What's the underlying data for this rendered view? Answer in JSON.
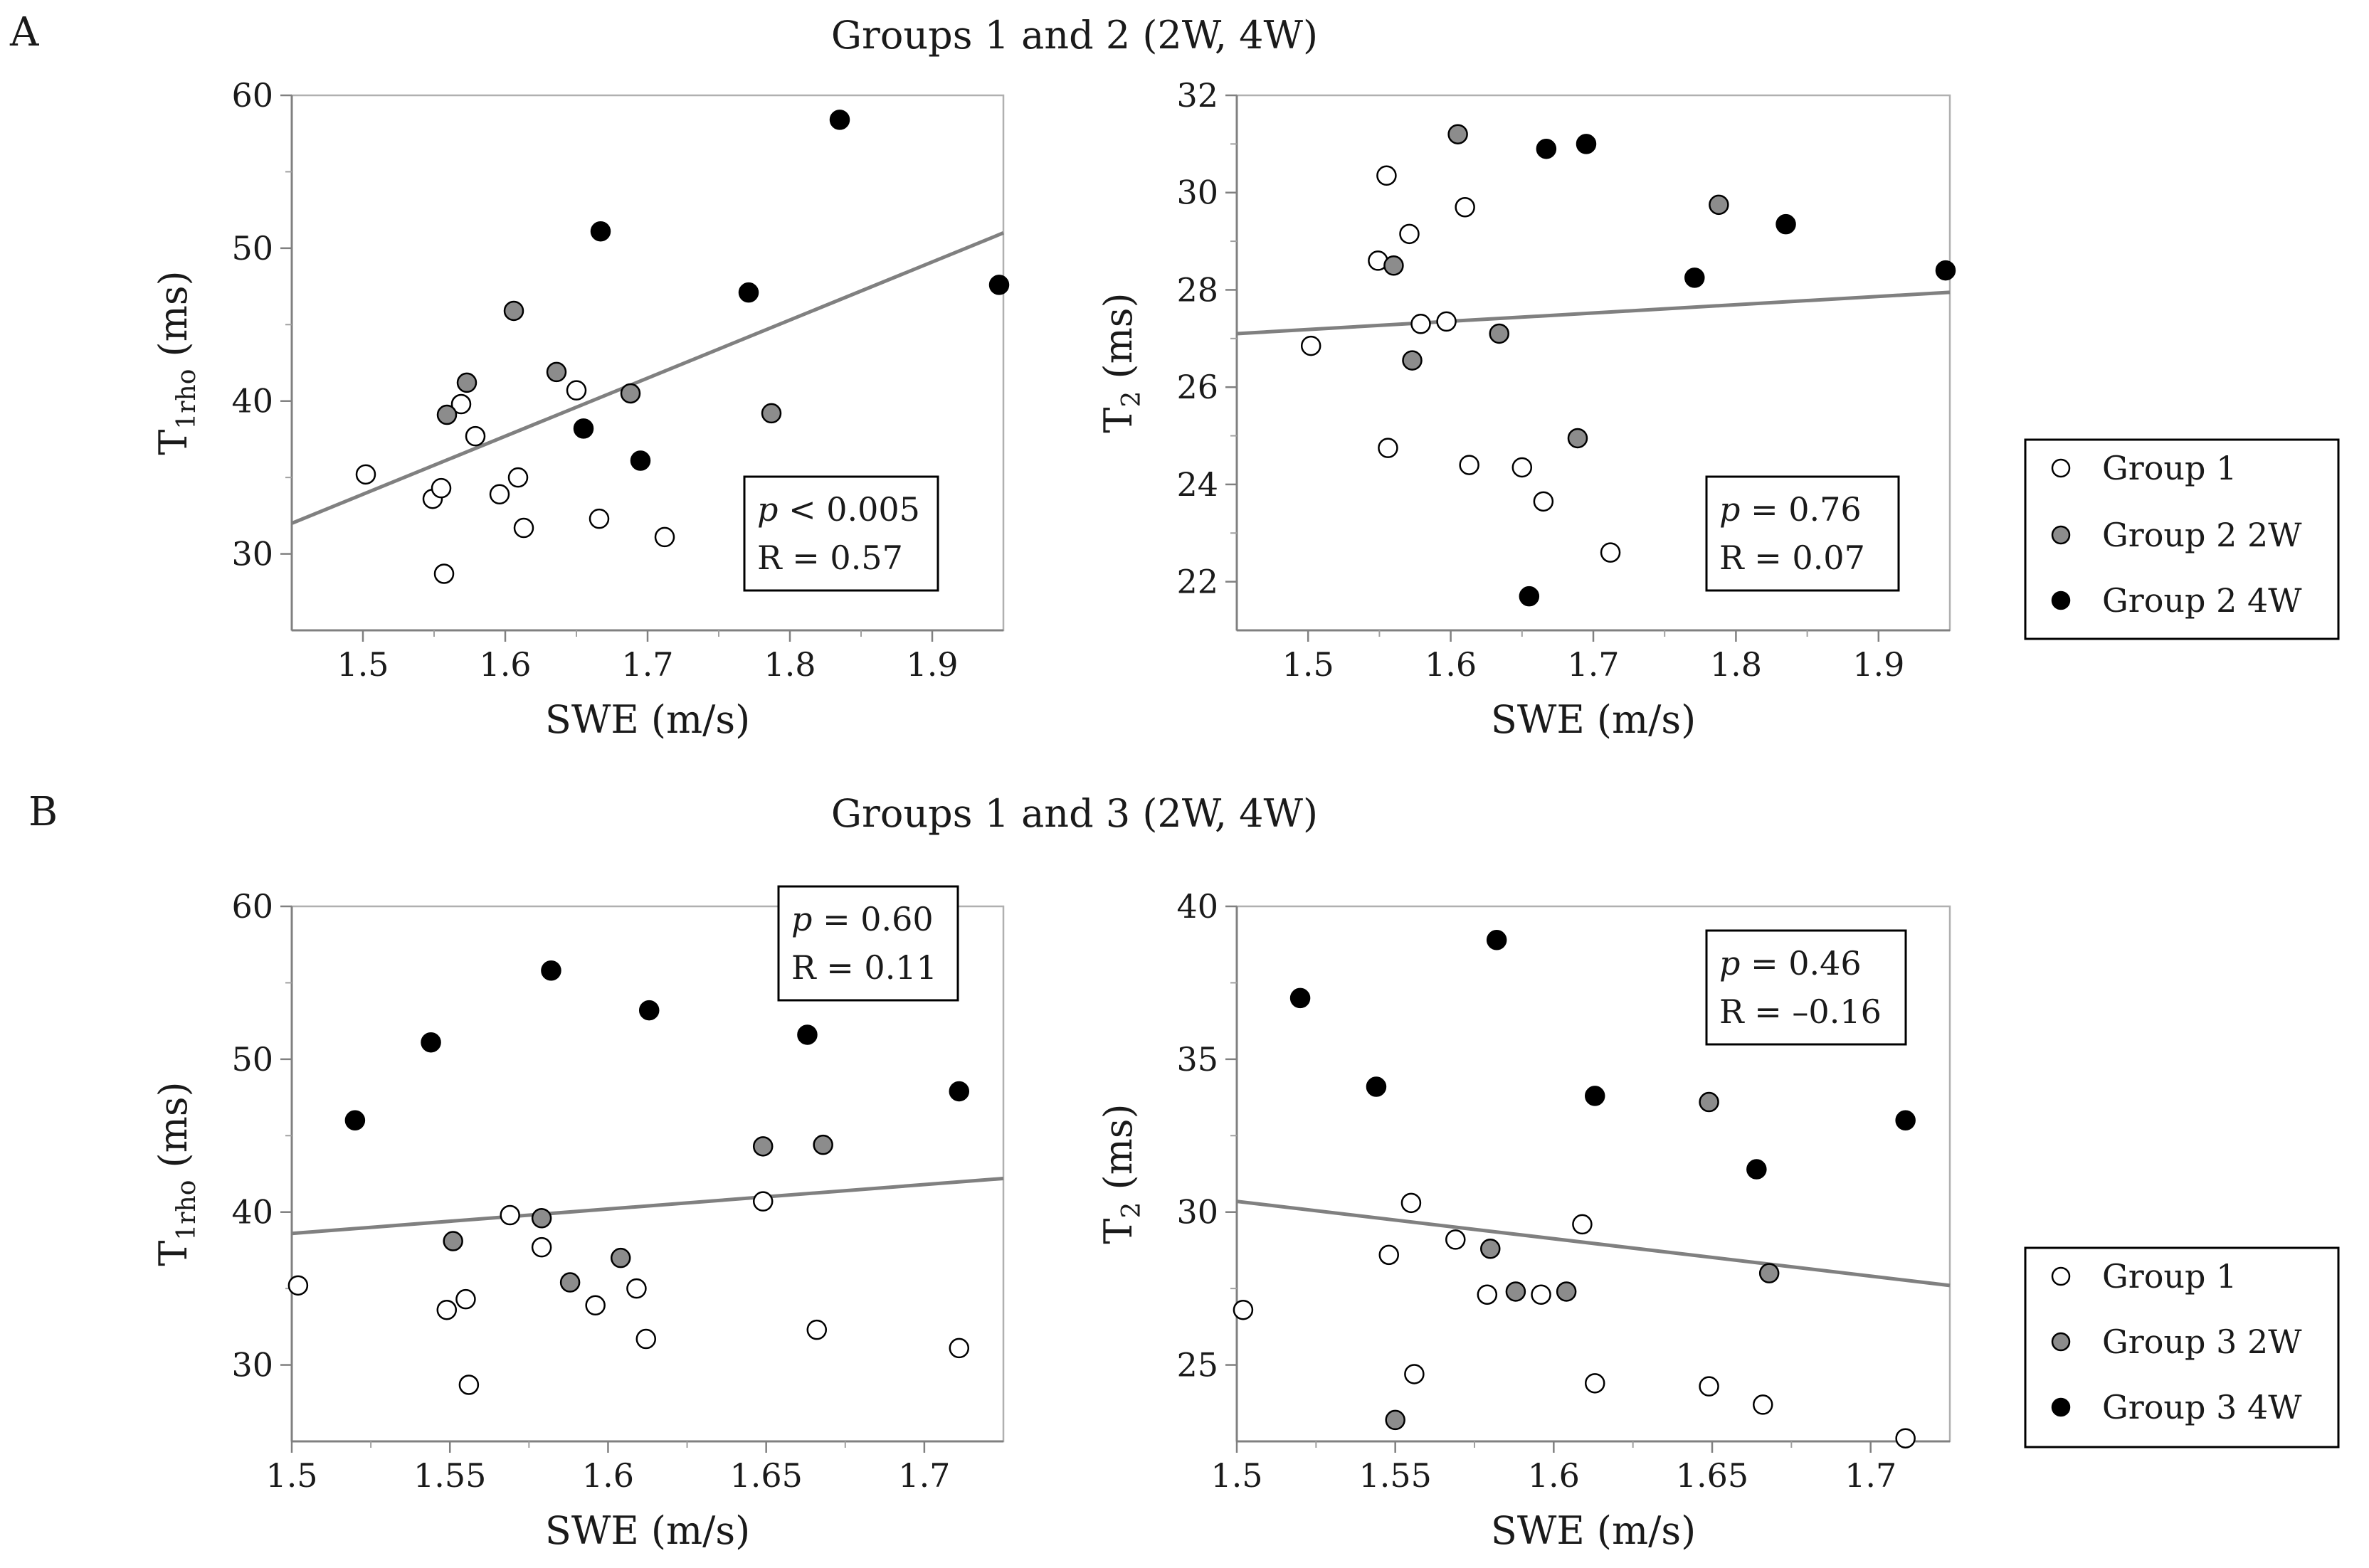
{
  "sections": [
    {
      "letter": "A",
      "title": "Groups 1 and 2 (2W, 4W)"
    },
    {
      "letter": "B",
      "title": "Groups 1 and 3 (2W, 4W)"
    }
  ],
  "colors": {
    "g1": "#ffffff",
    "g2": "#8c8c8c",
    "g3": "#000000",
    "marker_edge": "#000000",
    "fit_line": "#808080"
  },
  "legends": [
    {
      "items": [
        {
          "label": "Group 1",
          "color": "#ffffff"
        },
        {
          "label": "Group 2 2W",
          "color": "#8c8c8c"
        },
        {
          "label": "Group 2 4W",
          "color": "#000000"
        }
      ]
    },
    {
      "items": [
        {
          "label": "Group 1",
          "color": "#ffffff"
        },
        {
          "label": "Group 3 2W",
          "color": "#8c8c8c"
        },
        {
          "label": "Group 3 4W",
          "color": "#000000"
        }
      ]
    }
  ],
  "chart_data": [
    {
      "type": "scatter",
      "section": "A",
      "title": "",
      "xlabel": "SWE (m/s)",
      "ylabel": "T1rho (ms)",
      "ylabel_main": "T",
      "ylabel_sub": "1rho",
      "ylabel_rest": " (ms)",
      "xlim": [
        1.45,
        1.95
      ],
      "ylim": [
        25,
        60
      ],
      "xticks": [
        1.5,
        1.6,
        1.7,
        1.8,
        1.9
      ],
      "xtick_labels": [
        "1.5",
        "1.6",
        "1.7",
        "1.8",
        "1.9"
      ],
      "yticks": [
        30,
        40,
        50,
        60
      ],
      "ytick_labels": [
        "30",
        "40",
        "50",
        "60"
      ],
      "stats": {
        "p_symbol": "p",
        "p_text": " < 0.005",
        "r_text": "R = 0.57",
        "position": "lower-right"
      },
      "fit_line": {
        "x": [
          1.45,
          1.95
        ],
        "y": [
          32.0,
          51.0
        ]
      },
      "series": [
        {
          "name": "Group 1",
          "color": "#ffffff",
          "points": [
            [
              1.502,
              35.2
            ],
            [
              1.549,
              33.6
            ],
            [
              1.555,
              34.3
            ],
            [
              1.557,
              28.7
            ],
            [
              1.569,
              39.8
            ],
            [
              1.579,
              37.7
            ],
            [
              1.596,
              33.9
            ],
            [
              1.609,
              35.0
            ],
            [
              1.613,
              31.7
            ],
            [
              1.65,
              40.7
            ],
            [
              1.666,
              32.3
            ],
            [
              1.712,
              31.1
            ]
          ]
        },
        {
          "name": "Group 2 2W",
          "color": "#8c8c8c",
          "points": [
            [
              1.559,
              39.1
            ],
            [
              1.573,
              41.2
            ],
            [
              1.606,
              45.9
            ],
            [
              1.636,
              41.9
            ],
            [
              1.688,
              40.5
            ],
            [
              1.787,
              39.2
            ]
          ]
        },
        {
          "name": "Group 2 4W",
          "color": "#000000",
          "points": [
            [
              1.655,
              38.2
            ],
            [
              1.667,
              51.1
            ],
            [
              1.695,
              36.1
            ],
            [
              1.771,
              47.1
            ],
            [
              1.835,
              58.4
            ],
            [
              1.947,
              47.6
            ]
          ]
        }
      ]
    },
    {
      "type": "scatter",
      "section": "A",
      "title": "",
      "xlabel": "SWE (m/s)",
      "ylabel": "T2 (ms)",
      "ylabel_main": "T",
      "ylabel_sub": "2",
      "ylabel_rest": " (ms)",
      "xlim": [
        1.45,
        1.95
      ],
      "ylim": [
        21,
        32
      ],
      "xticks": [
        1.5,
        1.6,
        1.7,
        1.8,
        1.9
      ],
      "xtick_labels": [
        "1.5",
        "1.6",
        "1.7",
        "1.8",
        "1.9"
      ],
      "yticks": [
        22,
        24,
        26,
        28,
        30,
        32
      ],
      "ytick_labels": [
        "22",
        "24",
        "26",
        "28",
        "30",
        "32"
      ],
      "stats": {
        "p_symbol": "p",
        "p_text": " = 0.76",
        "r_text": "R = 0.07",
        "position": "lower-right"
      },
      "fit_line": {
        "x": [
          1.45,
          1.95
        ],
        "y": [
          27.1,
          27.95
        ]
      },
      "series": [
        {
          "name": "Group 1",
          "color": "#ffffff",
          "points": [
            [
              1.502,
              26.85
            ],
            [
              1.549,
              28.6
            ],
            [
              1.555,
              30.35
            ],
            [
              1.556,
              24.75
            ],
            [
              1.571,
              29.15
            ],
            [
              1.579,
              27.3
            ],
            [
              1.597,
              27.35
            ],
            [
              1.61,
              29.7
            ],
            [
              1.613,
              24.4
            ],
            [
              1.65,
              24.35
            ],
            [
              1.665,
              23.65
            ],
            [
              1.712,
              22.6
            ]
          ]
        },
        {
          "name": "Group 2 2W",
          "color": "#8c8c8c",
          "points": [
            [
              1.56,
              28.5
            ],
            [
              1.573,
              26.55
            ],
            [
              1.605,
              31.2
            ],
            [
              1.634,
              27.1
            ],
            [
              1.689,
              24.95
            ],
            [
              1.788,
              29.75
            ]
          ]
        },
        {
          "name": "Group 2 4W",
          "color": "#000000",
          "points": [
            [
              1.655,
              21.7
            ],
            [
              1.667,
              30.9
            ],
            [
              1.695,
              31.0
            ],
            [
              1.771,
              28.25
            ],
            [
              1.835,
              29.35
            ],
            [
              1.947,
              28.4
            ]
          ]
        }
      ]
    },
    {
      "type": "scatter",
      "section": "B",
      "title": "",
      "xlabel": "SWE (m/s)",
      "ylabel": "T1rho (ms)",
      "ylabel_main": "T",
      "ylabel_sub": "1rho",
      "ylabel_rest": " (ms)",
      "xlim": [
        1.5,
        1.725
      ],
      "ylim": [
        25,
        60
      ],
      "xticks": [
        1.5,
        1.55,
        1.6,
        1.65,
        1.7
      ],
      "xtick_labels": [
        "1.5",
        "1.55",
        "1.6",
        "1.65",
        "1.7"
      ],
      "yticks": [
        30,
        40,
        50,
        60
      ],
      "ytick_labels": [
        "30",
        "40",
        "50",
        "60"
      ],
      "stats": {
        "p_symbol": "p",
        "p_text": " = 0.60",
        "r_text": "R = 0.11",
        "position": "top-right"
      },
      "fit_line": {
        "x": [
          1.5,
          1.725
        ],
        "y": [
          38.6,
          42.2
        ]
      },
      "series": [
        {
          "name": "Group 1",
          "color": "#ffffff",
          "points": [
            [
              1.502,
              35.2
            ],
            [
              1.549,
              33.6
            ],
            [
              1.555,
              34.3
            ],
            [
              1.556,
              28.7
            ],
            [
              1.569,
              39.8
            ],
            [
              1.579,
              37.7
            ],
            [
              1.596,
              33.9
            ],
            [
              1.609,
              35.0
            ],
            [
              1.612,
              31.7
            ],
            [
              1.649,
              40.7
            ],
            [
              1.666,
              32.3
            ],
            [
              1.711,
              31.1
            ]
          ]
        },
        {
          "name": "Group 3 2W",
          "color": "#8c8c8c",
          "points": [
            [
              1.551,
              38.1
            ],
            [
              1.579,
              39.6
            ],
            [
              1.588,
              35.4
            ],
            [
              1.604,
              37.0
            ],
            [
              1.649,
              44.3
            ],
            [
              1.668,
              44.4
            ]
          ]
        },
        {
          "name": "Group 3 4W",
          "color": "#000000",
          "points": [
            [
              1.52,
              46.0
            ],
            [
              1.544,
              51.1
            ],
            [
              1.582,
              55.8
            ],
            [
              1.613,
              53.2
            ],
            [
              1.663,
              51.6
            ],
            [
              1.711,
              47.9
            ]
          ]
        }
      ]
    },
    {
      "type": "scatter",
      "section": "B",
      "title": "",
      "xlabel": "SWE (m/s)",
      "ylabel": "T2 (ms)",
      "ylabel_main": "T",
      "ylabel_sub": "2",
      "ylabel_rest": " (ms)",
      "xlim": [
        1.5,
        1.725
      ],
      "ylim": [
        22.5,
        40
      ],
      "xticks": [
        1.5,
        1.55,
        1.6,
        1.65,
        1.7
      ],
      "xtick_labels": [
        "1.5",
        "1.55",
        "1.6",
        "1.65",
        "1.7"
      ],
      "yticks": [
        25,
        30,
        35,
        40
      ],
      "ytick_labels": [
        "25",
        "30",
        "35",
        "40"
      ],
      "stats": {
        "p_symbol": "p",
        "p_text": " = 0.46",
        "r_text": "R = –0.16",
        "position": "top-right"
      },
      "fit_line": {
        "x": [
          1.5,
          1.725
        ],
        "y": [
          30.35,
          27.6
        ]
      },
      "series": [
        {
          "name": "Group 1",
          "color": "#ffffff",
          "points": [
            [
              1.502,
              26.8
            ],
            [
              1.548,
              28.6
            ],
            [
              1.555,
              30.3
            ],
            [
              1.556,
              24.7
            ],
            [
              1.569,
              29.1
            ],
            [
              1.579,
              27.3
            ],
            [
              1.596,
              27.3
            ],
            [
              1.609,
              29.6
            ],
            [
              1.613,
              24.4
            ],
            [
              1.649,
              24.3
            ],
            [
              1.666,
              23.7
            ],
            [
              1.711,
              22.6
            ]
          ]
        },
        {
          "name": "Group 3 2W",
          "color": "#8c8c8c",
          "points": [
            [
              1.55,
              23.2
            ],
            [
              1.58,
              28.8
            ],
            [
              1.588,
              27.4
            ],
            [
              1.604,
              27.4
            ],
            [
              1.649,
              33.6
            ],
            [
              1.668,
              28.0
            ]
          ]
        },
        {
          "name": "Group 3 4W",
          "color": "#000000",
          "points": [
            [
              1.52,
              37.0
            ],
            [
              1.544,
              34.1
            ],
            [
              1.582,
              38.9
            ],
            [
              1.613,
              33.8
            ],
            [
              1.664,
              31.4
            ],
            [
              1.711,
              33.0
            ]
          ]
        }
      ]
    }
  ]
}
